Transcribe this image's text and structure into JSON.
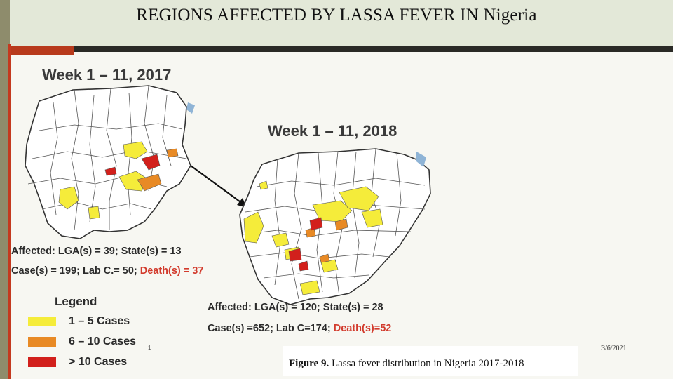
{
  "slide": {
    "title": "REGIONS AFFECTED BY LASSA FEVER  IN Nigeria",
    "slide_number": "1",
    "date": "3/6/2021"
  },
  "maps": [
    {
      "title": "Week 1 – 11, 2017",
      "affected": "Affected: LGA(s) = 39; State(s) = 13",
      "cases": "Case(s) = 199; Lab C.= 50; ",
      "deaths": "Death(s) = 37"
    },
    {
      "title": "Week 1 – 11, 2018",
      "affected": "Affected: LGA(s) = 120;  State(s) = 28",
      "cases": "Case(s) =652; Lab C=174; ",
      "deaths": "Death(s)=52"
    }
  ],
  "legend": {
    "title": "Legend",
    "items": [
      {
        "label": "1 – 5 Cases",
        "color": "#f5ec3a"
      },
      {
        "label": "6 – 10 Cases",
        "color": "#e88a25"
      },
      {
        "label": "> 10 Cases",
        "color": "#d2201c"
      }
    ]
  },
  "caption": {
    "figure": "Figure 9.",
    "text": " Lassa fever distribution in Nigeria 2017-2018"
  },
  "colors": {
    "low": "#f5ec3a",
    "mid": "#e88a25",
    "high": "#d2201c",
    "water": "#8fb4d6",
    "border": "#333333"
  }
}
